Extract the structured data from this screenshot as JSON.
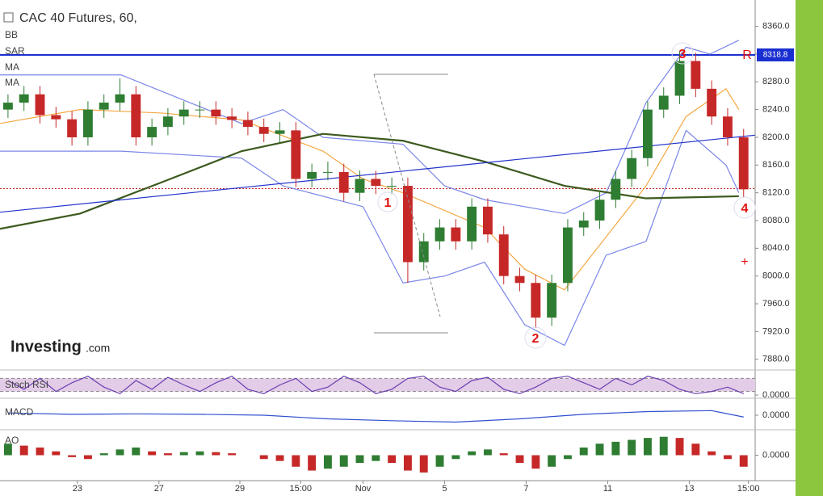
{
  "chart_data": {
    "type": "candlestick",
    "title": "CAC 40 Futures, 60,",
    "indicators": [
      "BB",
      "SAR",
      "MA",
      "MA"
    ],
    "brand": "Investing",
    "brand_suffix": ".com",
    "up_color": "#2e7d32",
    "down_color": "#c62828",
    "xlim": [
      -0.5,
      46.72
    ],
    "xticks": [
      {
        "value": 4.34,
        "label": "23"
      },
      {
        "value": 9.44,
        "label": "27"
      },
      {
        "value": 14.5,
        "label": "29"
      },
      {
        "value": 18.3,
        "label": "15:00"
      },
      {
        "value": 22.2,
        "label": "Nov"
      },
      {
        "value": 27.3,
        "label": "5"
      },
      {
        "value": 32.4,
        "label": "7"
      },
      {
        "value": 37.5,
        "label": "11"
      },
      {
        "value": 42.6,
        "label": "13"
      },
      {
        "value": 46.3,
        "label": "15:00"
      }
    ],
    "ylim": [
      7868,
      8398
    ],
    "yticks": [
      {
        "value": 8360,
        "label": "8360.0"
      },
      {
        "value": 8320,
        "label": "8320.0"
      },
      {
        "value": 8280,
        "label": "8280.0"
      },
      {
        "value": 8240,
        "label": "8240.0"
      },
      {
        "value": 8200,
        "label": "8200.0"
      },
      {
        "value": 8160,
        "label": "8160.0"
      },
      {
        "value": 8120,
        "label": "8120.0"
      },
      {
        "value": 8080,
        "label": "8080.0"
      },
      {
        "value": 8040,
        "label": "8040.0"
      },
      {
        "value": 8000,
        "label": "8000.0"
      },
      {
        "value": 7960,
        "label": "7960.0"
      },
      {
        "value": 7920,
        "label": "7920.0"
      },
      {
        "value": 7880,
        "label": "7880.0"
      }
    ],
    "x": [
      0,
      1,
      2,
      3,
      4,
      5,
      6,
      7,
      8,
      9,
      10,
      11,
      12,
      13,
      14,
      15,
      16,
      17,
      18,
      19,
      20,
      21,
      22,
      23,
      24,
      25,
      26,
      27,
      28,
      29,
      30,
      31,
      32,
      33,
      34,
      35,
      36,
      37,
      38,
      39,
      40,
      41,
      42,
      43,
      44,
      45,
      46
    ],
    "open": [
      8240,
      8250,
      8262,
      8232,
      8226,
      8200,
      8240,
      8250,
      8262,
      8200,
      8215,
      8230,
      8240,
      8240,
      8230,
      8225,
      8215,
      8205,
      8210,
      8140,
      8150,
      8150,
      8120,
      8140,
      8130,
      8130,
      8020,
      8050,
      8070,
      8050,
      8100,
      8060,
      8000,
      7990,
      7940,
      7990,
      8070,
      8080,
      8110,
      8140,
      8170,
      8240,
      8260,
      8310,
      8270,
      8230,
      8200
    ],
    "high": [
      8262,
      8274,
      8274,
      8244,
      8238,
      8252,
      8262,
      8285,
      8274,
      8227,
      8242,
      8252,
      8252,
      8252,
      8242,
      8237,
      8227,
      8222,
      8222,
      8162,
      8165,
      8162,
      8152,
      8152,
      8142,
      8142,
      8062,
      8082,
      8082,
      8112,
      8112,
      8072,
      8012,
      8002,
      8002,
      8082,
      8092,
      8122,
      8152,
      8182,
      8252,
      8272,
      8325,
      8322,
      8282,
      8242,
      8212
    ],
    "low": [
      8228,
      8238,
      8220,
      8214,
      8188,
      8188,
      8228,
      8238,
      8188,
      8188,
      8203,
      8218,
      8228,
      8218,
      8213,
      8203,
      8193,
      8193,
      8128,
      8128,
      8138,
      8108,
      8108,
      8118,
      8118,
      7990,
      8008,
      8038,
      8038,
      8038,
      8048,
      7988,
      7978,
      7925,
      7928,
      7978,
      8058,
      8068,
      8098,
      8128,
      8158,
      8228,
      8248,
      8258,
      8218,
      8188,
      8113
    ],
    "close": [
      8250,
      8262,
      8232,
      8226,
      8200,
      8240,
      8250,
      8262,
      8200,
      8215,
      8230,
      8240,
      8240,
      8230,
      8225,
      8215,
      8205,
      8210,
      8140,
      8150,
      8150,
      8120,
      8140,
      8130,
      8130,
      8020,
      8050,
      8070,
      8050,
      8100,
      8060,
      8000,
      7990,
      7940,
      7990,
      8070,
      8080,
      8110,
      8140,
      8170,
      8240,
      8260,
      8310,
      8270,
      8230,
      8200,
      8125
    ],
    "overlays": [
      {
        "color": "#7b86e8",
        "x": [
          -0.5,
          7.07,
          14.6,
          17.2,
          19.7,
          24.7,
          27.3,
          29.8,
          34.8,
          37.4,
          39.9,
          42.4,
          43.9,
          45.7
        ],
        "values": [
          8290,
          8290,
          8220,
          8240,
          8200,
          8190,
          8130,
          8110,
          8090,
          8120,
          8250,
          8330,
          8320,
          8340
        ]
      },
      {
        "color": "#7b86e8",
        "x": [
          -0.5,
          7.07,
          14.6,
          17.2,
          22.2,
          24.7,
          27.3,
          29.8,
          32.3,
          34.8,
          37.4,
          39.9,
          42.4,
          44.9,
          45.7
        ],
        "values": [
          8180,
          8180,
          8170,
          8130,
          8100,
          7990,
          8000,
          8020,
          7930,
          7900,
          8030,
          8050,
          8210,
          8160,
          8120
        ]
      },
      {
        "color": "#f5a742",
        "x": [
          -0.5,
          4.5,
          9.6,
          14.6,
          19.7,
          22.2,
          24.7,
          29.8,
          32.3,
          34.8,
          39.9,
          42.4,
          44.9,
          45.7
        ],
        "values": [
          8220,
          8240,
          8235,
          8225,
          8180,
          8140,
          8120,
          8070,
          8010,
          7980,
          8130,
          8230,
          8270,
          8240
        ]
      },
      {
        "color": "#3d5a1e",
        "x": [
          -0.5,
          4.5,
          9.6,
          14.6,
          19.7,
          24.7,
          29.8,
          34.8,
          39.9,
          45.7
        ],
        "values": [
          8068,
          8090,
          8135,
          8180,
          8205,
          8195,
          8165,
          8130,
          8112,
          8115
        ]
      },
      {
        "color": "#2233cc",
        "x": [
          -0.5,
          46.7
        ],
        "values": [
          8092,
          8203
        ]
      }
    ],
    "resistance": {
      "value": 8318.8,
      "label": "8318.8",
      "tag": "R",
      "color": "#1a2fd1"
    },
    "marker_line": {
      "value": 8126,
      "color": "#c62828"
    },
    "annotations": [
      "1",
      "2",
      "3",
      "4"
    ],
    "panels": [
      {
        "name": "Stoch RSI",
        "type": "line",
        "ylim": [
          0,
          100
        ],
        "yticks": [
          {
            "value": 0,
            "label": "0.0000"
          }
        ],
        "bands": [
          20,
          80
        ],
        "color": "#6a3fb0",
        "x": [
          0,
          1,
          2,
          3,
          4,
          5,
          6,
          7,
          8,
          9,
          10,
          11,
          12,
          13,
          14,
          15,
          16,
          17,
          18,
          19,
          20,
          21,
          22,
          23,
          24,
          25,
          26,
          27,
          28,
          29,
          30,
          31,
          32,
          33,
          34,
          35,
          36,
          37,
          38,
          39,
          40,
          41,
          42,
          43,
          44,
          45,
          46
        ],
        "values": [
          70,
          30,
          80,
          20,
          60,
          90,
          40,
          10,
          70,
          30,
          85,
          50,
          20,
          60,
          90,
          30,
          10,
          50,
          80,
          20,
          40,
          90,
          60,
          10,
          30,
          80,
          90,
          40,
          20,
          70,
          85,
          30,
          10,
          40,
          80,
          90,
          60,
          30,
          80,
          50,
          90,
          70,
          30,
          10,
          20,
          40,
          10
        ]
      },
      {
        "name": "MACD",
        "type": "line",
        "ylim": [
          -30,
          30
        ],
        "yticks": [
          {
            "value": 0,
            "label": "0.0000"
          }
        ],
        "color": "#3050d0",
        "x": [
          0,
          4,
          8,
          12,
          16,
          20,
          24,
          28,
          32,
          36,
          40,
          44,
          46
        ],
        "values": [
          5,
          2,
          3,
          2,
          0,
          -8,
          -12,
          -15,
          -8,
          2,
          8,
          10,
          -4
        ]
      },
      {
        "name": "AO",
        "type": "histogram",
        "ylim": [
          -60,
          60
        ],
        "yticks": [
          {
            "value": 0,
            "label": "0.0000"
          }
        ],
        "x": [
          0,
          1,
          2,
          3,
          4,
          5,
          6,
          7,
          8,
          9,
          10,
          11,
          12,
          13,
          14,
          15,
          16,
          17,
          18,
          19,
          20,
          21,
          22,
          23,
          24,
          25,
          26,
          27,
          28,
          29,
          30,
          31,
          32,
          33,
          34,
          35,
          36,
          37,
          38,
          39,
          40,
          41,
          42,
          43,
          44,
          45,
          46
        ],
        "values": [
          30,
          25,
          20,
          10,
          -5,
          -10,
          5,
          15,
          20,
          10,
          5,
          8,
          10,
          8,
          5,
          0,
          -10,
          -15,
          -30,
          -40,
          -35,
          -30,
          -20,
          -15,
          -20,
          -40,
          -45,
          -30,
          -10,
          10,
          15,
          5,
          -20,
          -35,
          -30,
          -10,
          20,
          30,
          35,
          40,
          45,
          48,
          45,
          30,
          10,
          -10,
          -30
        ]
      }
    ]
  }
}
